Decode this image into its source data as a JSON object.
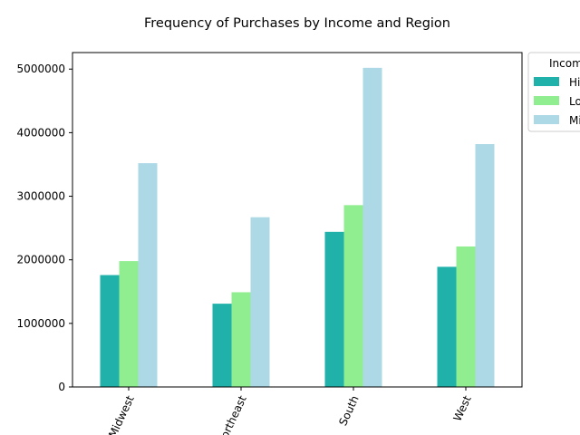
{
  "chart_data": {
    "type": "bar",
    "title": "Frequency of Purchases by Income and Region",
    "xlabel": "",
    "ylabel": "",
    "categories": [
      "Midwest",
      "Northeast",
      "South",
      "West"
    ],
    "series": [
      {
        "name": "High",
        "color": "#20b2aa",
        "values": [
          1760000,
          1310000,
          2440000,
          1890000
        ]
      },
      {
        "name": "Low",
        "color": "#90ee90",
        "values": [
          1980000,
          1490000,
          2860000,
          2210000
        ]
      },
      {
        "name": "Middle",
        "color": "#add8e6",
        "values": [
          3520000,
          2670000,
          5020000,
          3820000
        ]
      }
    ],
    "ylim": [
      0,
      5260000
    ],
    "yticks": [
      0,
      1000000,
      2000000,
      3000000,
      4000000,
      5000000
    ],
    "ytick_labels": [
      "0",
      "1000000",
      "2000000",
      "3000000",
      "4000000",
      "5000000"
    ],
    "legend": {
      "title": "Income",
      "placement": "outside-top-right"
    },
    "grid": false
  }
}
